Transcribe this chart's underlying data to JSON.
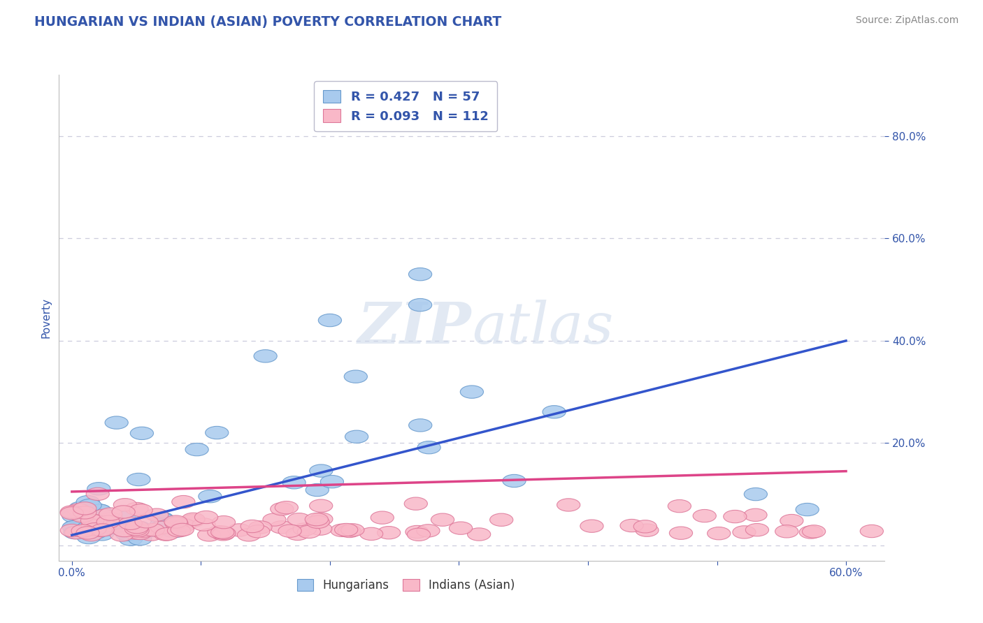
{
  "title": "HUNGARIAN VS INDIAN (ASIAN) POVERTY CORRELATION CHART",
  "source": "Source: ZipAtlas.com",
  "xlabel_ticks": [
    "0.0%",
    "",
    "",
    "",
    "",
    "",
    "60.0%"
  ],
  "xlabel_tick_vals": [
    0.0,
    0.1,
    0.2,
    0.3,
    0.4,
    0.5,
    0.6
  ],
  "ylabel": "Poverty",
  "ylabel_ticks": [
    "80.0%",
    "60.0%",
    "40.0%",
    "20.0%"
  ],
  "ylabel_tick_vals": [
    0.8,
    0.6,
    0.4,
    0.2
  ],
  "xlim": [
    -0.01,
    0.63
  ],
  "ylim": [
    -0.03,
    0.92
  ],
  "hungarian_R": 0.427,
  "hungarian_N": 57,
  "indian_R": 0.093,
  "indian_N": 112,
  "hungarian_color": "#A8CAEE",
  "hungarian_edge": "#6699CC",
  "indian_color": "#F9B8C8",
  "indian_edge": "#DD7799",
  "trend_blue": "#3355CC",
  "trend_pink": "#DD4488",
  "watermark_color": "#CBD8EA",
  "title_color": "#3355AA",
  "axis_label_color": "#3355AA",
  "tick_color": "#3355AA",
  "legend_color": "#3355AA",
  "grid_color": "#CCCCDD",
  "background_color": "#FFFFFF",
  "hungarian_trend_x0": 0.0,
  "hungarian_trend_y0": 0.02,
  "hungarian_trend_x1": 0.6,
  "hungarian_trend_y1": 0.4,
  "indian_trend_x0": 0.0,
  "indian_trend_y0": 0.105,
  "indian_trend_x1": 0.6,
  "indian_trend_y1": 0.145
}
